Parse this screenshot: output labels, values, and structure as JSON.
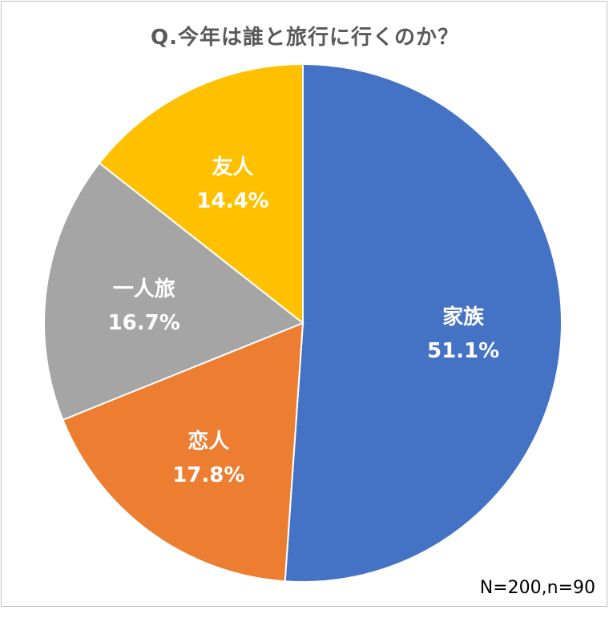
{
  "chart_data": {
    "type": "pie",
    "title": "Q.今年は誰と旅行に行くのか？",
    "note": "N=200,n=90",
    "slices": [
      {
        "label": "家族",
        "value": 51.1,
        "value_label": "51.1%",
        "color": "#4472C4"
      },
      {
        "label": "恋人",
        "value": 17.8,
        "value_label": "17.8%",
        "color": "#ED7D31"
      },
      {
        "label": "一人旅",
        "value": 16.7,
        "value_label": "16.7%",
        "color": "#A5A5A5"
      },
      {
        "label": "友人",
        "value": 14.4,
        "value_label": "14.4%",
        "color": "#FFC000"
      }
    ],
    "start_angle_deg": 0,
    "direction": "clockwise",
    "legend": "none"
  }
}
